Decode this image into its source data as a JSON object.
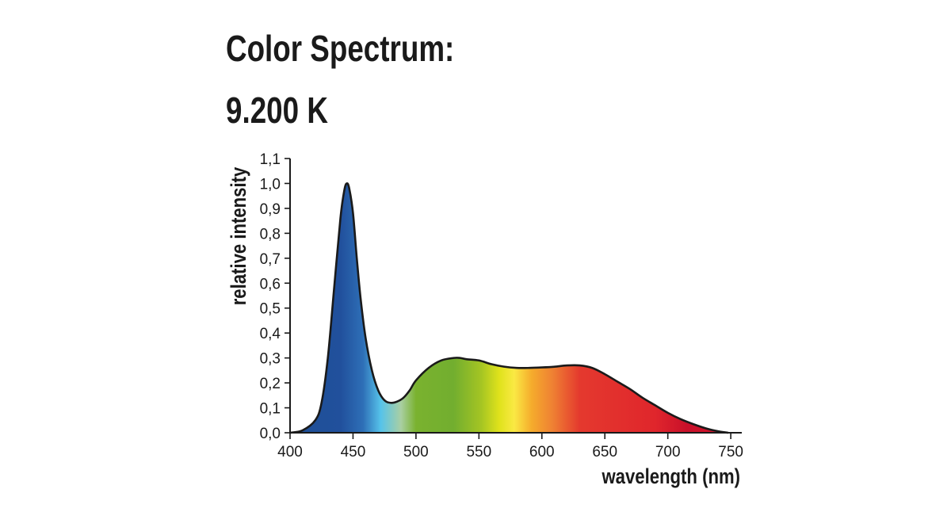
{
  "title_lines": [
    "Color Spectrum:",
    "9.200 K"
  ],
  "chart_data": {
    "type": "area",
    "title": "Color Spectrum: 9.200 K",
    "xlabel": "wavelength  (nm)",
    "ylabel": "relative intensity",
    "xlim": [
      400,
      760
    ],
    "ylim": [
      0.0,
      1.1
    ],
    "x_ticks": [
      400,
      450,
      500,
      550,
      600,
      650,
      700,
      750
    ],
    "x_tick_labels": [
      "400",
      "450",
      "500",
      "550",
      "600",
      "650",
      "700",
      "750"
    ],
    "y_ticks": [
      0.0,
      0.1,
      0.2,
      0.3,
      0.4,
      0.5,
      0.6,
      0.7,
      0.8,
      0.9,
      1.0,
      1.1
    ],
    "y_tick_labels": [
      "0,0",
      "0,1",
      "0,2",
      "0,3",
      "0,4",
      "0,5",
      "0,6",
      "0,7",
      "0,8",
      "0,9",
      "1,0",
      "1,1"
    ],
    "grid": false,
    "series": [
      {
        "x": [
          400,
          410,
          420,
          425,
          430,
          435,
          440,
          443,
          445,
          447,
          450,
          453,
          456,
          460,
          465,
          470,
          475,
          480,
          485,
          490,
          495,
          500,
          510,
          520,
          530,
          535,
          540,
          550,
          560,
          570,
          580,
          590,
          600,
          610,
          620,
          630,
          640,
          650,
          660,
          670,
          680,
          690,
          700,
          710,
          720,
          730,
          740,
          748
        ],
        "y": [
          0.0,
          0.01,
          0.05,
          0.12,
          0.3,
          0.58,
          0.86,
          0.97,
          1.0,
          0.98,
          0.88,
          0.7,
          0.54,
          0.38,
          0.25,
          0.17,
          0.13,
          0.12,
          0.125,
          0.14,
          0.17,
          0.21,
          0.26,
          0.29,
          0.3,
          0.3,
          0.295,
          0.29,
          0.275,
          0.265,
          0.26,
          0.26,
          0.262,
          0.265,
          0.27,
          0.27,
          0.26,
          0.235,
          0.205,
          0.175,
          0.14,
          0.11,
          0.08,
          0.055,
          0.035,
          0.018,
          0.006,
          0.0
        ]
      }
    ],
    "fill_gradient": [
      {
        "nm": 400,
        "color": "#1e4f96"
      },
      {
        "nm": 440,
        "color": "#21509c"
      },
      {
        "nm": 458,
        "color": "#2e6fb7"
      },
      {
        "nm": 472,
        "color": "#56c3ea"
      },
      {
        "nm": 488,
        "color": "#a9cfa3"
      },
      {
        "nm": 500,
        "color": "#7ab22f"
      },
      {
        "nm": 530,
        "color": "#72ae2f"
      },
      {
        "nm": 552,
        "color": "#a5c523"
      },
      {
        "nm": 566,
        "color": "#dfe21b"
      },
      {
        "nm": 578,
        "color": "#fae944"
      },
      {
        "nm": 592,
        "color": "#f5ab2c"
      },
      {
        "nm": 608,
        "color": "#ef8233"
      },
      {
        "nm": 630,
        "color": "#e4392e"
      },
      {
        "nm": 690,
        "color": "#e0262c"
      },
      {
        "nm": 715,
        "color": "#c9102a"
      },
      {
        "nm": 748,
        "color": "#d4142a"
      }
    ]
  }
}
